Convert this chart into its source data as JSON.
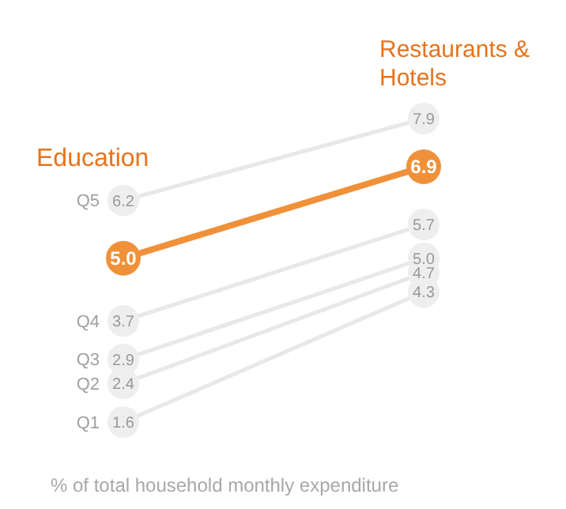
{
  "chart_data": {
    "type": "line",
    "categories": [
      "Education",
      "Restaurants & Hotels"
    ],
    "xlabel": "% of total household monthly expenditure",
    "marker": "circle",
    "series": [
      {
        "name": "Q5",
        "color": "#e8e8e8",
        "values": [
          6.2,
          7.9
        ],
        "value_labels": [
          "6.2",
          "7.9"
        ]
      },
      {
        "name": "Q4",
        "color": "#e8e8e8",
        "values": [
          3.7,
          5.7
        ],
        "value_labels": [
          "3.7",
          "5.7"
        ]
      },
      {
        "name": "Q3",
        "color": "#e8e8e8",
        "values": [
          2.9,
          5.0
        ],
        "value_labels": [
          "2.9",
          "5.0"
        ]
      },
      {
        "name": "Q2",
        "color": "#e8e8e8",
        "values": [
          2.4,
          4.7
        ],
        "value_labels": [
          "2.4",
          "4.7"
        ]
      },
      {
        "name": "Q1",
        "color": "#e8e8e8",
        "values": [
          1.6,
          4.3
        ],
        "value_labels": [
          "1.6",
          "4.3"
        ]
      },
      {
        "color": "#f0913a",
        "values": [
          5.0,
          6.9
        ],
        "value_labels": [
          "5.0",
          "6.9"
        ]
      }
    ]
  }
}
